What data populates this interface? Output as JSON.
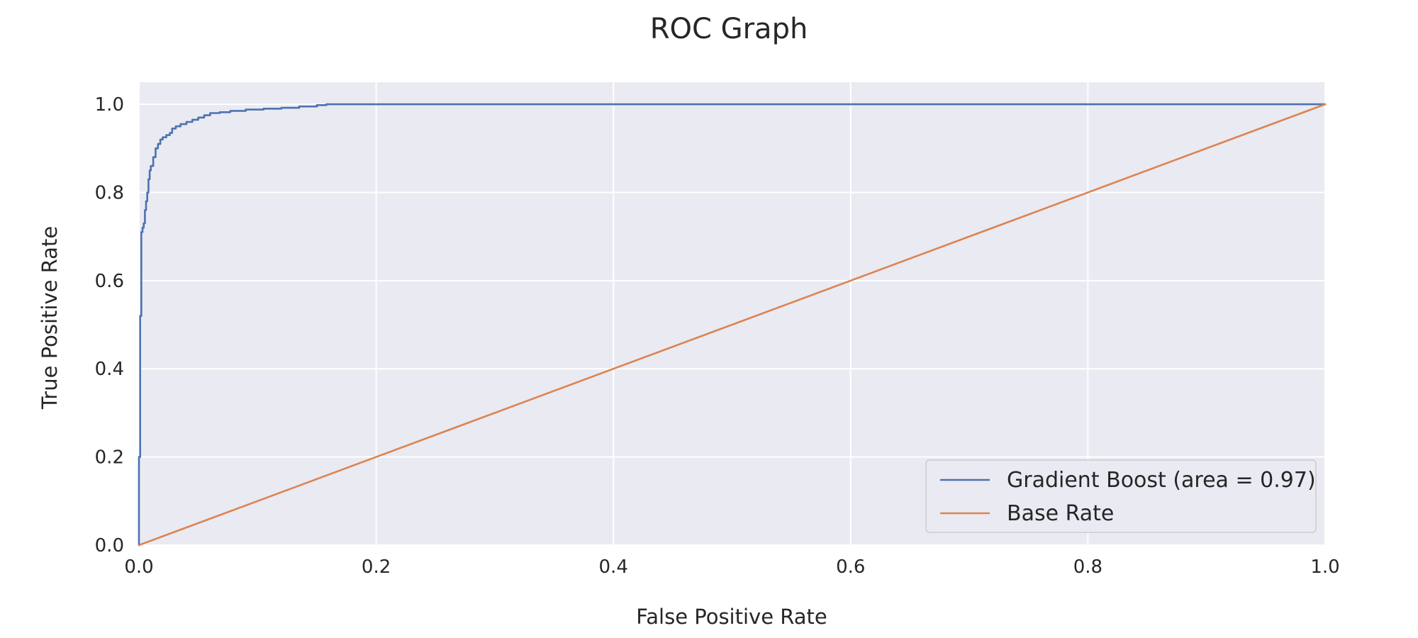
{
  "chart_data": {
    "type": "line",
    "title": "ROC Graph",
    "xlabel": "False Positive Rate",
    "ylabel": "True Positive Rate",
    "xlim": [
      0.0,
      1.0
    ],
    "ylim": [
      0.0,
      1.05
    ],
    "xticks": [
      "0.0",
      "0.2",
      "0.4",
      "0.6",
      "0.8",
      "1.0"
    ],
    "yticks": [
      "0.0",
      "0.2",
      "0.4",
      "0.6",
      "0.8",
      "1.0"
    ],
    "grid": true,
    "legend_position": "lower-right",
    "background_color": "#eaeaf2",
    "series": [
      {
        "name": "Gradient Boost (area = 0.97)",
        "color": "#4c72b0",
        "step": true,
        "x": [
          0.0,
          0.0,
          0.001,
          0.001,
          0.002,
          0.003,
          0.004,
          0.005,
          0.006,
          0.007,
          0.008,
          0.009,
          0.01,
          0.012,
          0.014,
          0.016,
          0.018,
          0.02,
          0.023,
          0.026,
          0.028,
          0.031,
          0.035,
          0.04,
          0.045,
          0.05,
          0.055,
          0.06,
          0.068,
          0.077,
          0.09,
          0.105,
          0.12,
          0.135,
          0.15,
          0.158,
          0.2,
          0.4,
          0.6,
          0.8,
          1.0
        ],
        "y": [
          0.0,
          0.2,
          0.2,
          0.52,
          0.71,
          0.72,
          0.73,
          0.76,
          0.78,
          0.8,
          0.83,
          0.85,
          0.86,
          0.88,
          0.9,
          0.91,
          0.92,
          0.925,
          0.93,
          0.935,
          0.945,
          0.95,
          0.955,
          0.96,
          0.965,
          0.97,
          0.975,
          0.98,
          0.982,
          0.985,
          0.988,
          0.99,
          0.992,
          0.995,
          0.998,
          1.0,
          1.0,
          1.0,
          1.0,
          1.0,
          1.0
        ]
      },
      {
        "name": "Base Rate",
        "color": "#dd8452",
        "step": false,
        "x": [
          0.0,
          1.0
        ],
        "y": [
          0.0,
          1.0
        ]
      }
    ]
  }
}
